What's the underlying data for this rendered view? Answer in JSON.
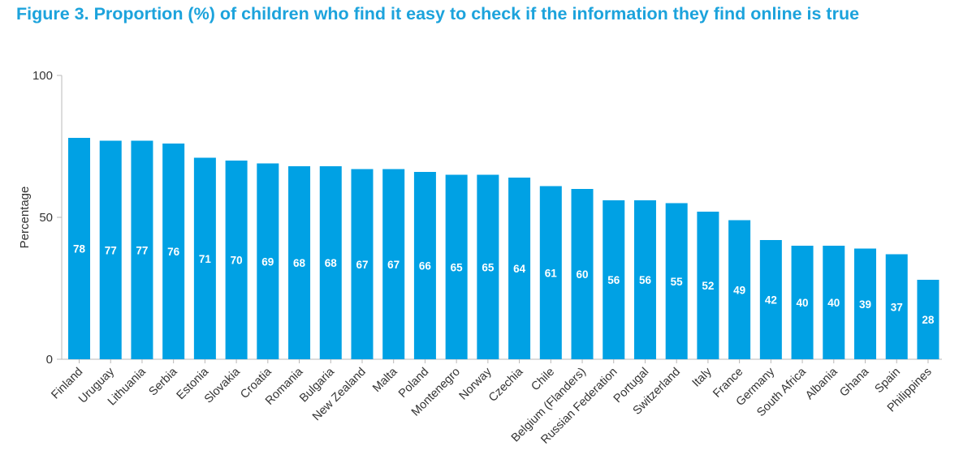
{
  "title": "Figure 3. Proportion (%) of children who find it easy to check if the information they find online is true",
  "colors": {
    "bar": "#00a1e4",
    "title": "#1ca3dc",
    "axis": "#b8b8b8"
  },
  "chart_data": {
    "type": "bar",
    "ylabel": "Percentage",
    "xlabel": "",
    "ylim": [
      0,
      100
    ],
    "yticks": [
      0,
      50,
      100
    ],
    "grid": false,
    "categories": [
      "Finland",
      "Uruguay",
      "Lithuania",
      "Serbia",
      "Estonia",
      "Slovakia",
      "Croatia",
      "Romania",
      "Bulgaria",
      "New Zealand",
      "Malta",
      "Poland",
      "Montenegro",
      "Norway",
      "Czechia",
      "Chile",
      "Belgium (Flanders)",
      "Russian Federation",
      "Portugal",
      "Switzerland",
      "Italy",
      "France",
      "Germany",
      "South Africa",
      "Albania",
      "Ghana",
      "Spain",
      "Philippines"
    ],
    "values": [
      78,
      77,
      77,
      76,
      71,
      70,
      69,
      68,
      68,
      67,
      67,
      66,
      65,
      65,
      64,
      61,
      60,
      56,
      56,
      55,
      52,
      49,
      42,
      40,
      40,
      39,
      37,
      28
    ]
  }
}
